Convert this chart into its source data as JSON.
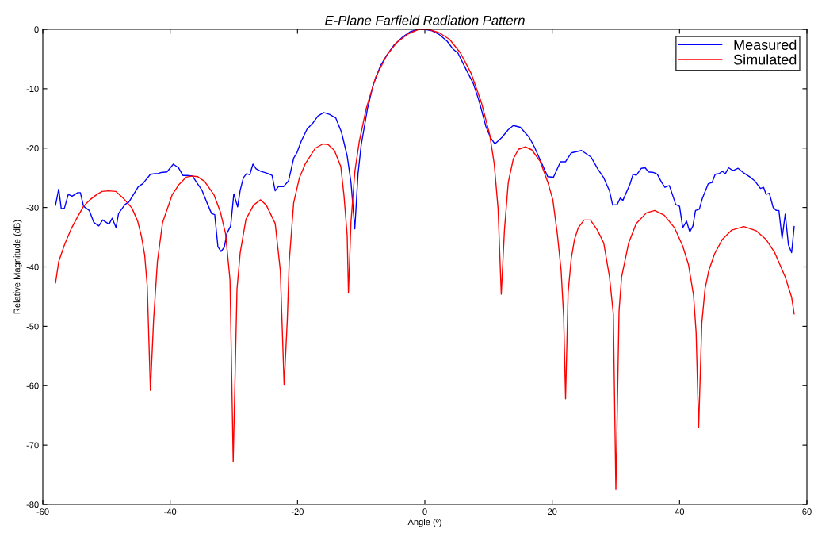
{
  "chart_data": {
    "type": "line",
    "title": "E-Plane Farfield Radiation Pattern",
    "xlabel": "Angle (º)",
    "ylabel": "Relative Magnitude (dB)",
    "xlim": [
      -60,
      60
    ],
    "xticks": [
      -60,
      -40,
      -20,
      0,
      20,
      40,
      60
    ],
    "ylim": [
      -80,
      0
    ],
    "yticks": [
      -80,
      -70,
      -60,
      -50,
      -40,
      -30,
      -20,
      -10,
      0
    ],
    "grid": false,
    "legend": "top right",
    "marker": "none",
    "line_style": "solid",
    "series": [
      {
        "name": "Measured",
        "color": "#0000ff",
        "x": [
          -58.0,
          -57.5,
          -57.1,
          -56.6,
          -56.0,
          -55.4,
          -54.5,
          -54.1,
          -53.6,
          -52.7,
          -52.0,
          -51.2,
          -50.6,
          -49.6,
          -49.1,
          -48.5,
          -48.1,
          -47.1,
          -46.5,
          -45.8,
          -45.0,
          -44.3,
          -43.1,
          -42.4,
          -41.9,
          -41.4,
          -40.5,
          -39.5,
          -38.7,
          -38.0,
          -37.3,
          -36.5,
          -35.7,
          -35.0,
          -34.1,
          -33.5,
          -33.0,
          -32.5,
          -32.0,
          -31.5,
          -31.1,
          -30.5,
          -30.0,
          -29.4,
          -29.0,
          -28.5,
          -28.0,
          -27.5,
          -27.0,
          -26.5,
          -25.8,
          -25.2,
          -24.6,
          -24.0,
          -23.5,
          -23.0,
          -22.2,
          -21.4,
          -20.6,
          -20.1,
          -19.4,
          -18.5,
          -17.6,
          -16.8,
          -15.9,
          -15.0,
          -14.0,
          -13.1,
          -12.2,
          -11.6,
          -11.0,
          -10.5,
          -10.0,
          -9.0,
          -8.1,
          -7.0,
          -6.0,
          -4.8,
          -3.5,
          -2.3,
          -1.0,
          0,
          1.0,
          2.3,
          3.5,
          4.4,
          5.2,
          6.4,
          7.6,
          8.5,
          9.6,
          10.3,
          11.0,
          12.1,
          13.1,
          13.9,
          15.0,
          16.4,
          17.2,
          18.2,
          19.3,
          20.2,
          21.3,
          22.1,
          23.0,
          24.6,
          26.1,
          27.2,
          28.1,
          29.0,
          29.5,
          30.2,
          30.7,
          31.1,
          32.2,
          32.7,
          33.2,
          34.0,
          34.6,
          35.1,
          35.9,
          36.5,
          37.2,
          37.7,
          38.4,
          39.0,
          39.4,
          40.0,
          40.5,
          41.1,
          41.6,
          42.1,
          42.5,
          43.1,
          43.6,
          44.5,
          45.1,
          45.6,
          46.2,
          46.7,
          47.2,
          47.7,
          48.4,
          49.2,
          50.1,
          51.1,
          51.8,
          52.7,
          53.2,
          53.6,
          54.1,
          54.7,
          55.2,
          55.6,
          56.1,
          56.6,
          57.1,
          57.6,
          58.0
        ],
        "values": [
          -29.6,
          -26.9,
          -30.2,
          -30.1,
          -27.8,
          -28.1,
          -27.5,
          -27.5,
          -29.8,
          -30.5,
          -32.5,
          -33.1,
          -32.1,
          -32.8,
          -31.8,
          -33.4,
          -31.0,
          -29.5,
          -29.1,
          -27.9,
          -26.5,
          -26.0,
          -24.4,
          -24.3,
          -24.3,
          -24.1,
          -24.0,
          -22.7,
          -23.3,
          -24.6,
          -24.6,
          -24.7,
          -26.0,
          -27.1,
          -29.5,
          -31.0,
          -31.2,
          -36.6,
          -37.4,
          -36.7,
          -34.4,
          -33.1,
          -27.7,
          -29.9,
          -27.1,
          -25.0,
          -24.3,
          -24.5,
          -22.7,
          -23.5,
          -23.9,
          -24.1,
          -24.3,
          -24.6,
          -27.2,
          -26.5,
          -26.5,
          -25.5,
          -21.7,
          -20.8,
          -18.8,
          -16.8,
          -15.8,
          -14.6,
          -14.0,
          -14.3,
          -14.9,
          -17.3,
          -21.3,
          -25.8,
          -33.6,
          -24.4,
          -19.5,
          -13.3,
          -9.3,
          -6.2,
          -4.4,
          -2.6,
          -1.3,
          -0.4,
          0,
          0,
          -0.2,
          -0.9,
          -2.0,
          -3.3,
          -4.0,
          -6.6,
          -9.1,
          -12.0,
          -16.4,
          -18.2,
          -19.3,
          -18.2,
          -16.9,
          -16.2,
          -16.5,
          -18.2,
          -19.8,
          -22.2,
          -24.8,
          -24.9,
          -22.3,
          -22.3,
          -20.8,
          -20.4,
          -21.5,
          -23.6,
          -25.0,
          -27.2,
          -29.6,
          -29.5,
          -28.4,
          -28.8,
          -26.1,
          -24.4,
          -24.6,
          -23.4,
          -23.3,
          -24.0,
          -24.1,
          -24.4,
          -25.8,
          -26.6,
          -26.3,
          -28.2,
          -29.5,
          -29.8,
          -33.4,
          -32.3,
          -34.1,
          -33.1,
          -30.5,
          -30.3,
          -28.4,
          -26.0,
          -25.8,
          -24.4,
          -24.3,
          -23.9,
          -24.3,
          -23.3,
          -23.8,
          -23.4,
          -24.2,
          -24.9,
          -25.5,
          -26.8,
          -26.6,
          -27.8,
          -27.6,
          -30.0,
          -30.5,
          -30.5,
          -35.2,
          -31.1,
          -36.3,
          -37.6,
          -33.2
        ]
      },
      {
        "name": "Simulated",
        "color": "#ff0000",
        "x": [
          -58.0,
          -57.5,
          -56.6,
          -55.5,
          -54.5,
          -53.6,
          -52.6,
          -51.5,
          -50.7,
          -49.7,
          -48.5,
          -47.3,
          -46.0,
          -45.1,
          -44.5,
          -44.0,
          -43.6,
          -43.1,
          -42.6,
          -42.0,
          -41.2,
          -39.7,
          -38.6,
          -37.5,
          -36.5,
          -35.7,
          -34.6,
          -33.1,
          -32.1,
          -31.3,
          -30.6,
          -30.1,
          -29.5,
          -29.0,
          -28.1,
          -26.9,
          -25.8,
          -24.9,
          -23.5,
          -22.7,
          -22.1,
          -21.6,
          -21.3,
          -20.6,
          -19.7,
          -18.8,
          -18.5,
          -17.2,
          -16.0,
          -15.2,
          -14.2,
          -13.2,
          -12.7,
          -12.2,
          -12.0,
          -11.6,
          -11.0,
          -10.3,
          -9.2,
          -7.7,
          -6.0,
          -4.4,
          -2.7,
          -1.0,
          0.6,
          2.3,
          3.9,
          5.6,
          7.3,
          8.9,
          10.2,
          10.9,
          11.5,
          12.0,
          12.5,
          13.1,
          13.9,
          14.7,
          15.8,
          16.8,
          18.1,
          19.3,
          20.1,
          20.8,
          21.4,
          21.8,
          22.1,
          22.5,
          23.0,
          23.5,
          24.1,
          25.0,
          26.0,
          27.1,
          28.1,
          29.0,
          29.6,
          30.0,
          30.5,
          30.9,
          32.0,
          33.2,
          34.8,
          36.1,
          37.6,
          39.2,
          40.5,
          41.4,
          42.2,
          42.6,
          43.0,
          43.5,
          44.0,
          44.6,
          45.5,
          46.7,
          48.2,
          50.1,
          52.0,
          53.6,
          54.9,
          56.6,
          57.6,
          58.0
        ],
        "values": [
          -42.7,
          -39.1,
          -36.3,
          -33.5,
          -31.5,
          -29.8,
          -28.7,
          -27.8,
          -27.3,
          -27.2,
          -27.3,
          -28.5,
          -30.1,
          -32.3,
          -34.9,
          -38.0,
          -43.2,
          -60.8,
          -48.9,
          -39.1,
          -32.6,
          -27.9,
          -26.1,
          -24.9,
          -24.7,
          -24.8,
          -25.6,
          -27.9,
          -30.8,
          -34.4,
          -42.2,
          -72.8,
          -43.7,
          -37.6,
          -32.0,
          -29.6,
          -28.7,
          -29.6,
          -32.7,
          -40.6,
          -59.9,
          -48.9,
          -39.1,
          -29.2,
          -25.0,
          -22.7,
          -22.2,
          -20.0,
          -19.3,
          -19.4,
          -20.4,
          -23.1,
          -28.0,
          -34.7,
          -44.4,
          -32.4,
          -24.0,
          -18.9,
          -13.3,
          -8.0,
          -4.4,
          -2.2,
          -0.8,
          0,
          0,
          -0.6,
          -1.7,
          -4.0,
          -7.5,
          -12.4,
          -17.8,
          -22.7,
          -30.2,
          -44.6,
          -33.8,
          -25.8,
          -21.8,
          -20.2,
          -19.8,
          -20.3,
          -22.2,
          -25.7,
          -28.7,
          -34.4,
          -40.6,
          -48.4,
          -62.2,
          -44.3,
          -38.5,
          -35.4,
          -33.4,
          -32.1,
          -32.1,
          -33.8,
          -36.0,
          -41.7,
          -47.9,
          -77.5,
          -47.4,
          -41.7,
          -36.0,
          -32.7,
          -30.9,
          -30.5,
          -31.3,
          -33.4,
          -36.5,
          -39.6,
          -44.8,
          -51.0,
          -67.0,
          -49.4,
          -43.7,
          -40.6,
          -37.8,
          -35.4,
          -33.8,
          -33.2,
          -33.9,
          -35.4,
          -37.5,
          -41.7,
          -45.1,
          -47.9
        ]
      }
    ]
  }
}
